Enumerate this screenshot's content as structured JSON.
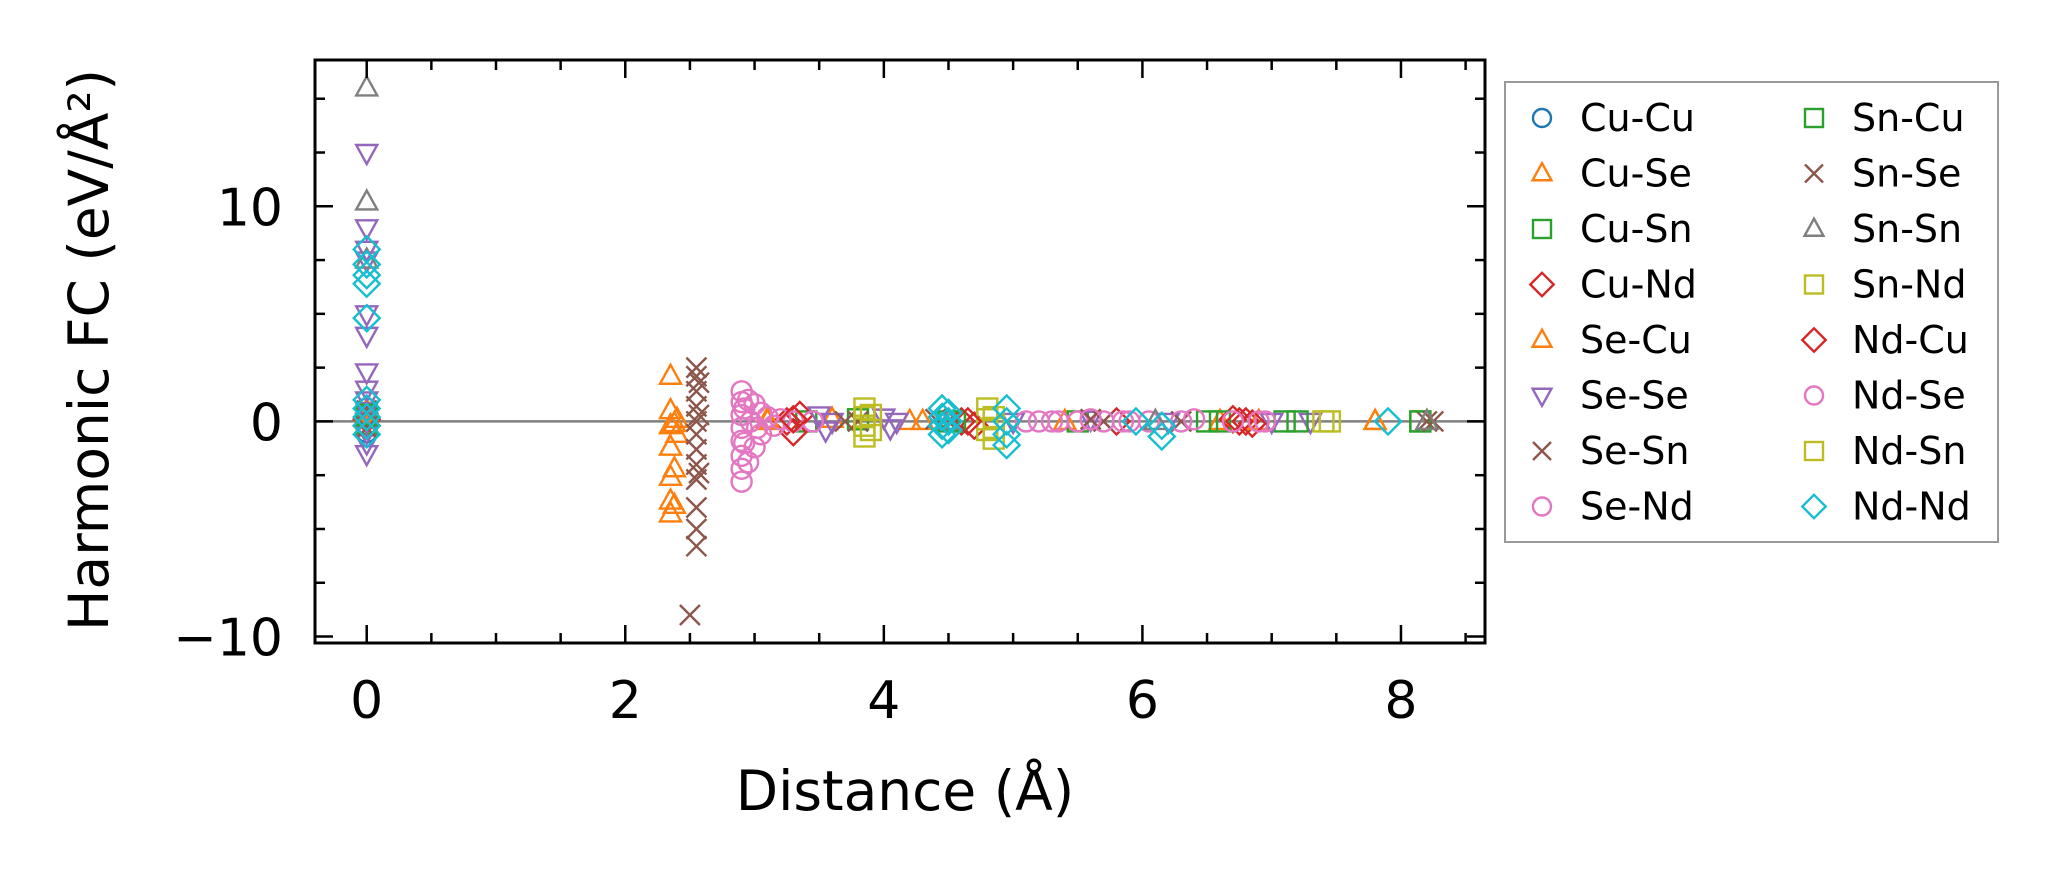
{
  "chart_data": {
    "type": "scatter",
    "xlabel": "Distance (Å)",
    "ylabel": "Harmonic FC (eV/Å²)",
    "xlim": [
      -0.4,
      8.65
    ],
    "ylim": [
      -10.3,
      16.8
    ],
    "x_ticks": [
      0,
      2,
      4,
      6,
      8
    ],
    "x_tick_labels": [
      "0",
      "2",
      "4",
      "6",
      "8"
    ],
    "y_ticks": [
      -10,
      0,
      10
    ],
    "y_tick_labels": [
      "−10",
      "0",
      "10"
    ],
    "reference_line_y": 0,
    "grid": false,
    "legend_position": "outside right",
    "legend_columns": 2,
    "series": [
      {
        "name": "Cu-Cu",
        "marker": "circle",
        "color": "#1f77b4",
        "points": [
          [
            0,
            0.3
          ],
          [
            0,
            -0.2
          ],
          [
            0,
            0.6
          ],
          [
            0,
            -0.5
          ]
        ]
      },
      {
        "name": "Cu-Se",
        "marker": "triangle-up",
        "color": "#ff7f0e",
        "points": [
          [
            0,
            0.5
          ],
          [
            0,
            -0.3
          ],
          [
            2.35,
            2.1
          ],
          [
            2.35,
            0.5
          ],
          [
            2.35,
            -0.2
          ],
          [
            2.35,
            -1.2
          ],
          [
            2.35,
            -2.6
          ],
          [
            2.35,
            -3.7
          ],
          [
            2.35,
            -4.3
          ],
          [
            2.4,
            0.1
          ],
          [
            2.4,
            -0.6
          ],
          [
            3.1,
            0
          ],
          [
            3.6,
            0.1
          ],
          [
            4.2,
            0
          ],
          [
            5.4,
            0
          ],
          [
            6.6,
            0
          ],
          [
            7.8,
            0
          ]
        ]
      },
      {
        "name": "Cu-Sn",
        "marker": "square",
        "color": "#2ca02c",
        "points": [
          [
            0,
            0.2
          ],
          [
            0,
            -0.1
          ],
          [
            3.4,
            0
          ],
          [
            3.8,
            0.1
          ],
          [
            4.5,
            0
          ],
          [
            5.5,
            0
          ],
          [
            6.5,
            0
          ],
          [
            7.1,
            0
          ],
          [
            8.15,
            0
          ]
        ]
      },
      {
        "name": "Cu-Nd",
        "marker": "diamond",
        "color": "#d62728",
        "points": [
          [
            0,
            0.1
          ],
          [
            3.25,
            0
          ],
          [
            3.3,
            -0.5
          ],
          [
            3.35,
            0.3
          ],
          [
            4.6,
            0
          ],
          [
            4.7,
            -0.2
          ],
          [
            5.8,
            0
          ],
          [
            6.7,
            0.1
          ],
          [
            6.8,
            0
          ]
        ]
      },
      {
        "name": "Se-Cu",
        "marker": "triangle-up",
        "color": "#ff7f0e",
        "points": [
          [
            0,
            0.4
          ],
          [
            2.38,
            -0.1
          ],
          [
            2.38,
            -2.2
          ],
          [
            2.38,
            -3.9
          ],
          [
            3.1,
            0.1
          ],
          [
            4.3,
            0
          ],
          [
            6.9,
            0
          ],
          [
            7.8,
            0
          ]
        ]
      },
      {
        "name": "Se-Se",
        "marker": "triangle-down",
        "color": "#9467bd",
        "points": [
          [
            0,
            12.5
          ],
          [
            0,
            9.0
          ],
          [
            0,
            8.0
          ],
          [
            0,
            7.5
          ],
          [
            0,
            5.0
          ],
          [
            0,
            4.0
          ],
          [
            0,
            2.3
          ],
          [
            0,
            1.5
          ],
          [
            0,
            1.0
          ],
          [
            0,
            0.5
          ],
          [
            0,
            0
          ],
          [
            0,
            -0.5
          ],
          [
            0,
            -1.0
          ],
          [
            0,
            -1.5
          ],
          [
            3.5,
            0.3
          ],
          [
            3.55,
            -0.4
          ],
          [
            3.6,
            0
          ],
          [
            4.0,
            0.2
          ],
          [
            4.05,
            -0.3
          ],
          [
            4.1,
            0
          ],
          [
            5.0,
            0
          ],
          [
            5.6,
            0.1
          ],
          [
            6.2,
            0
          ],
          [
            7.0,
            0
          ],
          [
            7.3,
            0
          ]
        ]
      },
      {
        "name": "Se-Sn",
        "marker": "x",
        "color": "#8c564b",
        "points": [
          [
            0,
            0.5
          ],
          [
            2.5,
            -9.0
          ],
          [
            2.55,
            -5.8
          ],
          [
            2.55,
            -5.0
          ],
          [
            2.55,
            -4.0
          ],
          [
            2.55,
            -2.7
          ],
          [
            2.55,
            -2.0
          ],
          [
            2.55,
            -1.3
          ],
          [
            2.55,
            -0.6
          ],
          [
            2.55,
            0
          ],
          [
            2.55,
            0.7
          ],
          [
            2.55,
            1.4
          ],
          [
            2.55,
            2.1
          ],
          [
            2.55,
            2.5
          ],
          [
            3.8,
            0
          ],
          [
            4.4,
            0.1
          ],
          [
            5.7,
            0
          ],
          [
            6.3,
            0
          ],
          [
            8.2,
            0
          ]
        ]
      },
      {
        "name": "Se-Nd",
        "marker": "circle",
        "color": "#e377c2",
        "points": [
          [
            2.9,
            1.4
          ],
          [
            2.9,
            0.9
          ],
          [
            2.9,
            0.3
          ],
          [
            2.9,
            -0.3
          ],
          [
            2.9,
            -0.9
          ],
          [
            2.9,
            -1.6
          ],
          [
            2.9,
            -2.2
          ],
          [
            2.9,
            -2.8
          ],
          [
            2.95,
            1.0
          ],
          [
            2.95,
            -1.9
          ],
          [
            3.0,
            0.8
          ],
          [
            3.0,
            -1.2
          ],
          [
            3.05,
            0.4
          ],
          [
            3.05,
            -0.6
          ],
          [
            3.1,
            0.2
          ],
          [
            3.15,
            -0.2
          ],
          [
            3.2,
            0.1
          ],
          [
            3.3,
            0
          ],
          [
            3.45,
            0
          ],
          [
            5.2,
            0
          ],
          [
            5.35,
            0
          ],
          [
            5.5,
            0
          ],
          [
            5.7,
            0
          ],
          [
            5.85,
            0
          ],
          [
            6.05,
            0
          ],
          [
            6.4,
            0.1
          ],
          [
            6.95,
            0
          ]
        ]
      },
      {
        "name": "Sn-Cu",
        "marker": "square",
        "color": "#2ca02c",
        "points": [
          [
            0,
            0.3
          ],
          [
            4.55,
            0
          ],
          [
            6.6,
            0
          ],
          [
            7.2,
            0
          ],
          [
            8.15,
            0
          ]
        ]
      },
      {
        "name": "Sn-Se",
        "marker": "x",
        "color": "#8c564b",
        "points": [
          [
            0,
            -0.3
          ],
          [
            2.57,
            -2.4
          ],
          [
            2.57,
            1.8
          ],
          [
            2.57,
            0.3
          ],
          [
            3.7,
            0
          ],
          [
            5.6,
            0.1
          ],
          [
            8.25,
            0
          ]
        ]
      },
      {
        "name": "Sn-Sn",
        "marker": "triangle-up",
        "color": "#7f7f7f",
        "points": [
          [
            0,
            15.5
          ],
          [
            0,
            10.2
          ],
          [
            0,
            7.5
          ],
          [
            4.5,
            0
          ],
          [
            6.1,
            0
          ],
          [
            8.2,
            0
          ]
        ]
      },
      {
        "name": "Sn-Nd",
        "marker": "square",
        "color": "#bcbd22",
        "points": [
          [
            3.85,
            0.6
          ],
          [
            3.85,
            0.2
          ],
          [
            3.85,
            -0.2
          ],
          [
            3.85,
            -0.7
          ],
          [
            4.8,
            0.6
          ],
          [
            4.8,
            0.1
          ],
          [
            4.8,
            -0.4
          ],
          [
            4.85,
            -0.8
          ],
          [
            7.45,
            0
          ]
        ]
      },
      {
        "name": "Nd-Cu",
        "marker": "diamond",
        "color": "#d62728",
        "points": [
          [
            0,
            -0.2
          ],
          [
            3.3,
            0.1
          ],
          [
            4.65,
            0
          ],
          [
            6.75,
            0
          ],
          [
            6.85,
            -0.1
          ]
        ]
      },
      {
        "name": "Nd-Se",
        "marker": "circle",
        "color": "#e377c2",
        "points": [
          [
            2.92,
            0.6
          ],
          [
            2.92,
            -1.0
          ],
          [
            2.97,
            0
          ],
          [
            3.02,
            -0.3
          ],
          [
            5.1,
            0
          ],
          [
            5.3,
            0
          ],
          [
            5.6,
            0.1
          ],
          [
            5.9,
            0
          ],
          [
            6.3,
            0
          ],
          [
            6.7,
            0
          ],
          [
            6.9,
            0
          ]
        ]
      },
      {
        "name": "Nd-Sn",
        "marker": "square",
        "color": "#bcbd22",
        "points": [
          [
            3.9,
            0.3
          ],
          [
            3.9,
            -0.4
          ],
          [
            4.85,
            0.2
          ],
          [
            4.85,
            -0.3
          ],
          [
            7.4,
            0
          ]
        ]
      },
      {
        "name": "Nd-Nd",
        "marker": "diamond",
        "color": "#17becf",
        "points": [
          [
            0,
            8.0
          ],
          [
            0,
            7.3
          ],
          [
            0,
            6.8
          ],
          [
            0,
            6.4
          ],
          [
            0,
            4.8
          ],
          [
            0,
            1.0
          ],
          [
            0,
            0.6
          ],
          [
            0,
            0.2
          ],
          [
            0,
            -0.2
          ],
          [
            0,
            -0.6
          ],
          [
            4.45,
            0.6
          ],
          [
            4.45,
            0.2
          ],
          [
            4.45,
            -0.2
          ],
          [
            4.45,
            -0.6
          ],
          [
            4.5,
            0.4
          ],
          [
            4.5,
            -0.4
          ],
          [
            4.5,
            0
          ],
          [
            4.95,
            0.6
          ],
          [
            4.95,
            0
          ],
          [
            4.95,
            -0.6
          ],
          [
            4.95,
            -1.1
          ],
          [
            5.95,
            0
          ],
          [
            6.15,
            -0.2
          ],
          [
            6.15,
            -0.7
          ],
          [
            7.9,
            0
          ]
        ]
      }
    ]
  }
}
